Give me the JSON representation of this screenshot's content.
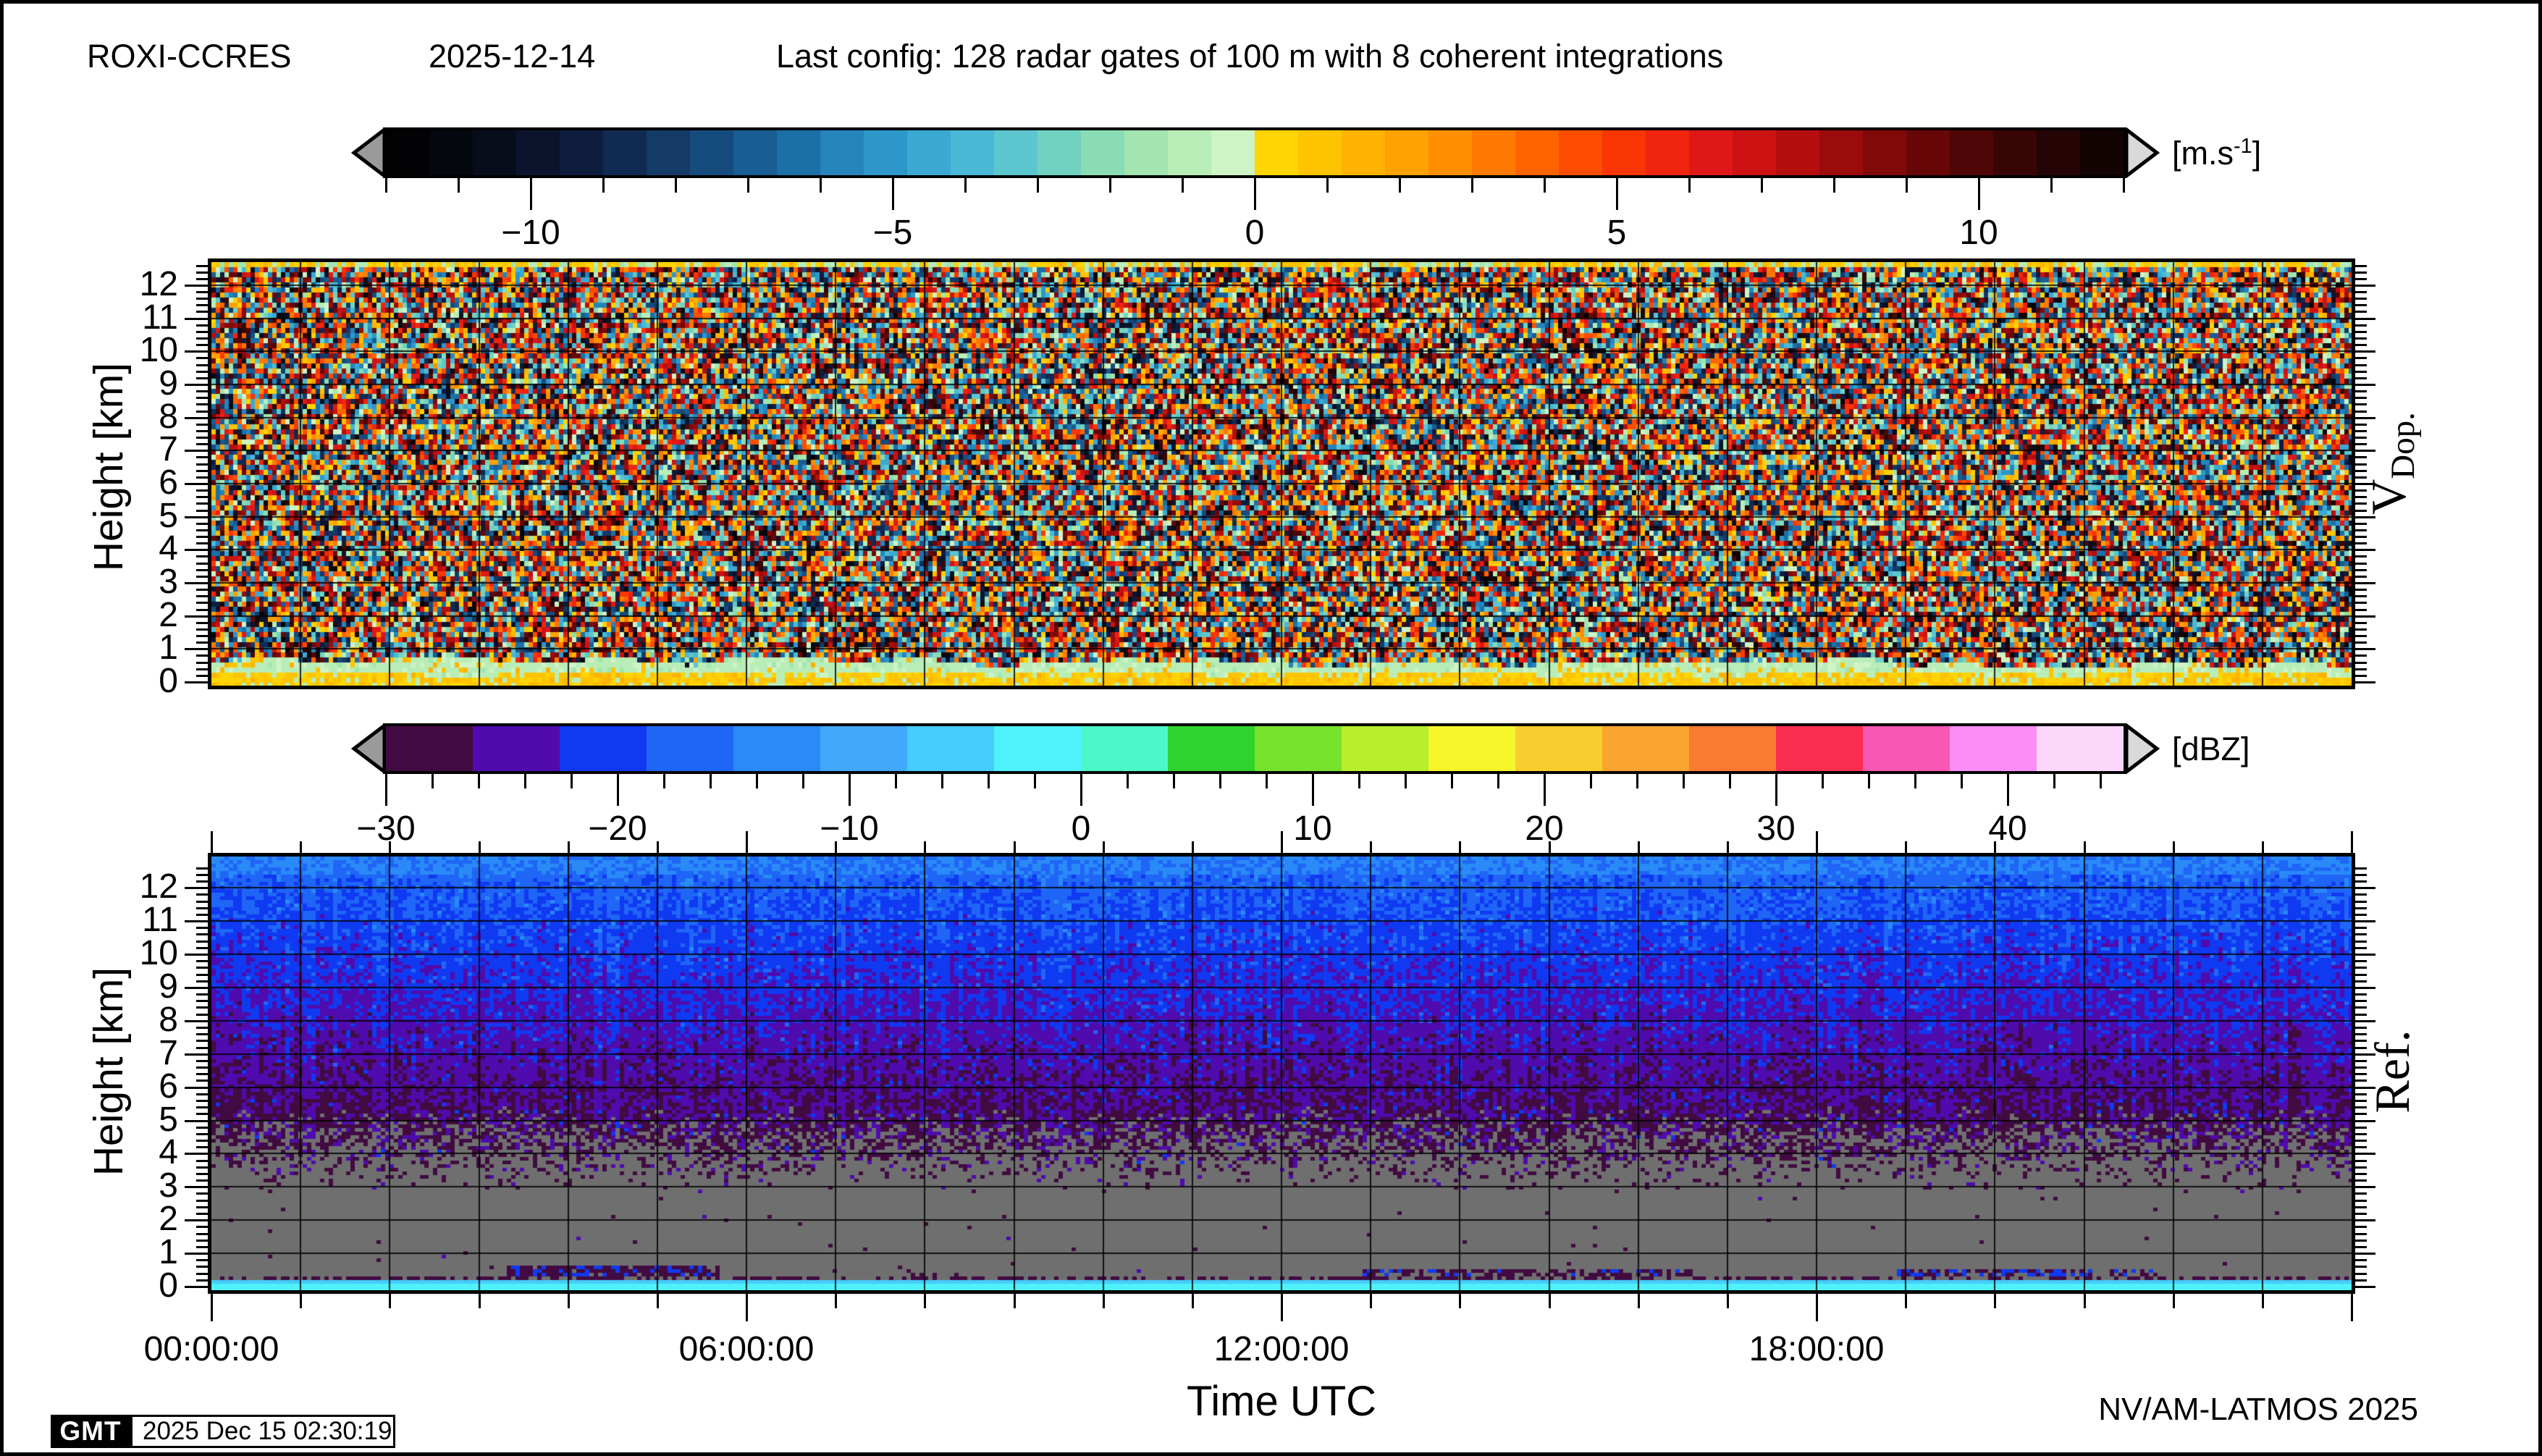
{
  "header": {
    "station": "ROXI-CCRES",
    "date": "2025-12-14",
    "config": "Last config: 128 radar gates of 100 m with 8 coherent integrations"
  },
  "footer": {
    "credit": "NV/AM-LATMOS 2025",
    "logo_text": "GMT",
    "timestamp": "2025 Dec 15 02:30:19"
  },
  "chart_data": [
    {
      "id": "doppler-velocity-panel",
      "type": "heatmap",
      "right_label_main": "V",
      "right_label_sub": "Dop.",
      "ylabel": "Height [km]",
      "ylim": [
        0,
        12.7
      ],
      "yticks": [
        0,
        1,
        2,
        3,
        4,
        5,
        6,
        7,
        8,
        9,
        10,
        11,
        12
      ],
      "ytick_labels": [
        "0",
        "1",
        "2",
        "3",
        "4",
        "5",
        "6",
        "7",
        "8",
        "9",
        "10",
        "11",
        "12"
      ],
      "ytick_minor_step": 0.2,
      "xlim_hours": [
        0,
        24
      ],
      "xtick_major_hours": [
        0,
        6,
        12,
        18
      ],
      "xtick_minor_step_hours": 1,
      "grid": {
        "x_step_hours": 1,
        "y_step_km": 1,
        "on": true
      },
      "colorbar": {
        "units_prefix": "[m.s",
        "units_sup": "-1",
        "units_suffix": "]",
        "min": -12,
        "max": 12,
        "mode": "discrete",
        "block_step": 0.6,
        "tick_minor_step": 1,
        "tick_major_values": [
          -10,
          -5,
          0,
          5,
          10
        ],
        "tick_major_labels": [
          "−10",
          "−5",
          "0",
          "5",
          "10"
        ],
        "colors": [
          "#020205",
          "#05070f",
          "#080d1c",
          "#0b142c",
          "#0e1c3e",
          "#112a52",
          "#143a67",
          "#164b7d",
          "#185d93",
          "#1b70a7",
          "#2484bb",
          "#2e97ca",
          "#3aa9d3",
          "#49b9d5",
          "#5cc6ce",
          "#72d2c1",
          "#8adcb5",
          "#a2e5b0",
          "#b9edb7",
          "#cef3c5",
          "#ffd400",
          "#ffc400",
          "#ffb300",
          "#ffa100",
          "#ff8e00",
          "#ff7a00",
          "#ff6400",
          "#ff4d00",
          "#fb3605",
          "#f0240f",
          "#e01717",
          "#cc1212",
          "#b50e0e",
          "#9c0b0b",
          "#820909",
          "#680707",
          "#4f0606",
          "#380505",
          "#240404",
          "#130303"
        ]
      },
      "field": {
        "kind": "uniform-velocity-noise",
        "vmin": -12,
        "vmax": 12,
        "surface_band": {
          "top_km_base": 0.42,
          "top_km_var": 0.33,
          "value": -0.85
        },
        "ground_band": {
          "top_km_base": 0.16,
          "top_km_var": 0.16,
          "value": 0.75
        },
        "top_stripe": {
          "bottom_km": 12.48,
          "value": 0.8,
          "green_fraction": 0.38,
          "green_value": -1.1
        }
      }
    },
    {
      "id": "reflectivity-panel",
      "type": "heatmap",
      "right_label_main": "Ref.",
      "right_label_sub": "",
      "ylabel": "Height [km]",
      "xlabel": "Time UTC",
      "ylim": [
        0,
        12.65
      ],
      "yticks": [
        0,
        1,
        2,
        3,
        4,
        5,
        6,
        7,
        8,
        9,
        10,
        11,
        12
      ],
      "ytick_labels": [
        "0",
        "1",
        "2",
        "3",
        "4",
        "5",
        "6",
        "7",
        "8",
        "9",
        "10",
        "11",
        "12"
      ],
      "ytick_minor_step": 0.2,
      "xlim_hours": [
        0,
        24
      ],
      "xtick_major_hours": [
        0,
        6,
        12,
        18
      ],
      "xtick_labels": [
        "00:00:00",
        "06:00:00",
        "12:00:00",
        "18:00:00"
      ],
      "xtick_minor_step_hours": 1,
      "grid": {
        "x_step_hours": 1,
        "y_step_km": 1,
        "on": true
      },
      "colorbar": {
        "units": "[dBZ]",
        "min": -30,
        "max": 45,
        "mode": "discrete",
        "block_step": 3.75,
        "tick_minor_step": 2,
        "tick_major_values": [
          -30,
          -20,
          -10,
          0,
          10,
          20,
          30,
          40
        ],
        "tick_major_labels": [
          "−30",
          "−20",
          "−10",
          "0",
          "10",
          "20",
          "30",
          "40"
        ],
        "colors": [
          "#410b41",
          "#4f0bad",
          "#1039f2",
          "#1f66f6",
          "#2a8af8",
          "#41a8fa",
          "#46cdfb",
          "#4ff2fb",
          "#4df8c8",
          "#2ed32e",
          "#77e22b",
          "#b7ef2c",
          "#f6f62d",
          "#f8ce2e",
          "#f9a52f",
          "#fa7a31",
          "#fb2e52",
          "#f957b4",
          "#fa8df5",
          "#fbd7fb"
        ],
        "nodata_color": "#6f6f6f"
      },
      "field": {
        "kind": "gradient-speckle",
        "background": "#6f6f6f",
        "profile": [
          [
            2.8,
            -28.5
          ],
          [
            4,
            -27.8
          ],
          [
            5.5,
            -26.6
          ],
          [
            7,
            -24.8
          ],
          [
            9,
            -22.3
          ],
          [
            11,
            -19.5
          ],
          [
            12.9,
            -16.6
          ]
        ],
        "jitter": 2.2,
        "column_jitter": 1.6,
        "presence": {
          "full_above_km": 5.4,
          "zero_below_km": 2.75,
          "sparse_prob": 0.004
        },
        "top_line": {
          "bottom_km": 12.45,
          "value": -14.6
        },
        "sub_speckle": {
          "bottom_km": 0.2,
          "top_km": 0.34,
          "density": 0.55,
          "value": -28.5
        },
        "surface_line": {
          "top_km": 0.2,
          "value_top": -5.5,
          "value_bottom": -2.5
        },
        "low_bands": [
          {
            "t0": 3.3,
            "t1": 5.7,
            "h0": 0.32,
            "h1": 0.62,
            "density": 0.9,
            "value": -27.5,
            "blue_fraction": 0.3,
            "blue_value": -21
          },
          {
            "t0": 7.6,
            "t1": 8.4,
            "h0": 0.3,
            "h1": 0.5,
            "density": 0.35,
            "value": -27.5,
            "blue_fraction": 0.15,
            "blue_value": -21.5
          },
          {
            "t0": 12.9,
            "t1": 16.6,
            "h0": 0.3,
            "h1": 0.52,
            "density": 0.6,
            "value": -28.0,
            "blue_fraction": 0.2,
            "blue_value": -21.5
          },
          {
            "t0": 18.9,
            "t1": 21.8,
            "h0": 0.28,
            "h1": 0.5,
            "density": 0.65,
            "value": -27.5,
            "blue_fraction": 0.45,
            "blue_value": -20
          }
        ]
      }
    }
  ]
}
